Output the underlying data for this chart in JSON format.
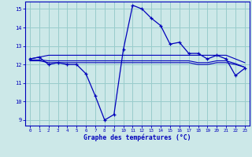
{
  "background_color": "#cce8e8",
  "grid_color": "#99cccc",
  "line_color": "#0000bb",
  "xlabel": "Graphe des températures (°C)",
  "xlim": [
    -0.5,
    23.5
  ],
  "ylim": [
    8.7,
    15.4
  ],
  "yticks": [
    9,
    10,
    11,
    12,
    13,
    14,
    15
  ],
  "xticks": [
    0,
    1,
    2,
    3,
    4,
    5,
    6,
    7,
    8,
    9,
    10,
    11,
    12,
    13,
    14,
    15,
    16,
    17,
    18,
    19,
    20,
    21,
    22,
    23
  ],
  "main_x": [
    0,
    1,
    2,
    3,
    4,
    5,
    6,
    7,
    8,
    9,
    10,
    11,
    12,
    13,
    14,
    15,
    16,
    17,
    18,
    19,
    20,
    21,
    22,
    23
  ],
  "main_y": [
    12.3,
    12.4,
    12.0,
    12.1,
    12.0,
    12.0,
    11.5,
    10.3,
    9.0,
    9.3,
    12.8,
    15.2,
    15.0,
    14.5,
    14.1,
    13.1,
    13.2,
    12.6,
    12.6,
    12.3,
    12.5,
    12.3,
    11.4,
    11.8
  ],
  "flat1_y": [
    12.3,
    12.4,
    12.5,
    12.5,
    12.5,
    12.5,
    12.5,
    12.5,
    12.5,
    12.5,
    12.5,
    12.5,
    12.5,
    12.5,
    12.5,
    12.5,
    12.5,
    12.5,
    12.5,
    12.5,
    12.5,
    12.5,
    12.3,
    12.1
  ],
  "flat2_y": [
    12.2,
    12.2,
    12.1,
    12.1,
    12.1,
    12.1,
    12.1,
    12.1,
    12.1,
    12.1,
    12.1,
    12.1,
    12.1,
    12.1,
    12.1,
    12.1,
    12.1,
    12.1,
    12.0,
    12.0,
    12.1,
    12.1,
    12.0,
    11.85
  ],
  "flat3_y": [
    12.25,
    12.25,
    12.2,
    12.2,
    12.2,
    12.2,
    12.2,
    12.2,
    12.2,
    12.2,
    12.2,
    12.2,
    12.2,
    12.2,
    12.2,
    12.2,
    12.2,
    12.2,
    12.1,
    12.1,
    12.2,
    12.2,
    12.05,
    11.85
  ]
}
